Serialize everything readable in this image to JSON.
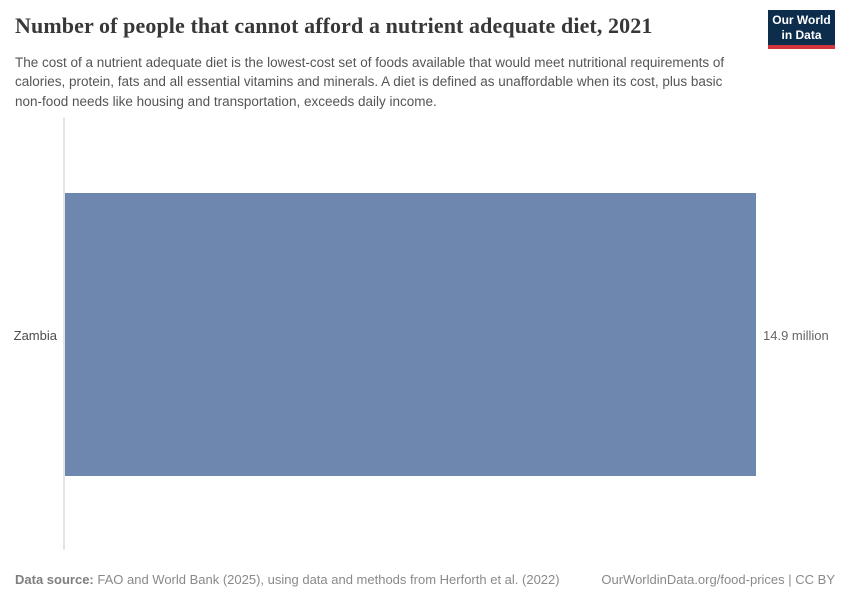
{
  "header": {
    "title": "Number of people that cannot afford a nutrient adequate diet, 2021",
    "subtitle": "The cost of a nutrient adequate diet is the lowest-cost set of foods available that would meet nutritional requirements of calories, protein, fats and all essential vitamins and minerals. A diet is defined as unaffordable when its cost, plus basic non-food needs like housing and transportation, exceeds daily income.",
    "logo": {
      "line1": "Our World",
      "line2": "in Data"
    }
  },
  "chart_data": {
    "type": "bar",
    "orientation": "horizontal",
    "title": "Number of people that cannot afford a nutrient adequate diet, 2021",
    "categories": [
      "Zambia"
    ],
    "values": [
      14.9
    ],
    "value_labels": [
      "14.9 million"
    ],
    "unit": "million people",
    "xlim": [
      0,
      14.9
    ],
    "grid": false,
    "legend": "none",
    "bar_color": "#6e87ae",
    "axis_line_color": "#e3e3e3"
  },
  "footer": {
    "datasource_label": "Data source:",
    "datasource_text": " FAO and World Bank (2025), using data and methods from Herforth et al. (2022)",
    "link": "OurWorldinData.org/food-prices",
    "license_suffix": " | CC BY"
  },
  "colors": {
    "bar": "#6e87ae",
    "logo_bg": "#0d2d4c",
    "logo_accent": "#d1353b",
    "axis_line": "#e3e3e3"
  }
}
